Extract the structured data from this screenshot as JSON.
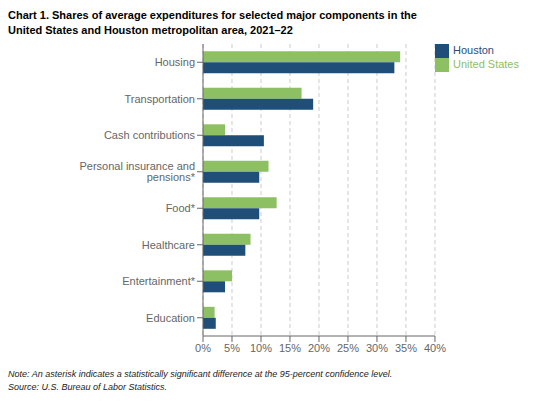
{
  "chart_data": {
    "type": "bar",
    "orientation": "horizontal",
    "title": "Chart 1. Shares of average expenditures for selected major components in the",
    "subtitle": "United States and Houston metropolitan area, 2021–22",
    "categories": [
      "Housing",
      "Transportation",
      "Cash contributions",
      "Personal insurance and pensions*",
      "Food*",
      "Healthcare",
      "Entertainment*",
      "Education"
    ],
    "series": [
      {
        "name": "United States",
        "color": "#8DC063",
        "values": [
          0.34,
          0.17,
          0.038,
          0.113,
          0.127,
          0.082,
          0.05,
          0.02
        ]
      },
      {
        "name": "Houston",
        "color": "#1F4E79",
        "values": [
          0.33,
          0.19,
          0.105,
          0.097,
          0.097,
          0.073,
          0.038,
          0.022
        ]
      }
    ],
    "xlim": [
      0,
      0.4
    ],
    "xticks": [
      {
        "value": 0.0,
        "label": "0%"
      },
      {
        "value": 0.05,
        "label": "5%"
      },
      {
        "value": 0.1,
        "label": "10%"
      },
      {
        "value": 0.15,
        "label": "15%"
      },
      {
        "value": 0.2,
        "label": "20%"
      },
      {
        "value": 0.25,
        "label": "25%"
      },
      {
        "value": 0.3,
        "label": "30%"
      },
      {
        "value": 0.35,
        "label": "35%"
      },
      {
        "value": 0.4,
        "label": "40%"
      }
    ],
    "grid": true,
    "legend": "upper right",
    "annotations": [
      "Note: An asterisk indicates a statistically significant difference at the 95-percent confidence level.",
      "Source: U.S. Bureau of Labor Statistics."
    ]
  }
}
